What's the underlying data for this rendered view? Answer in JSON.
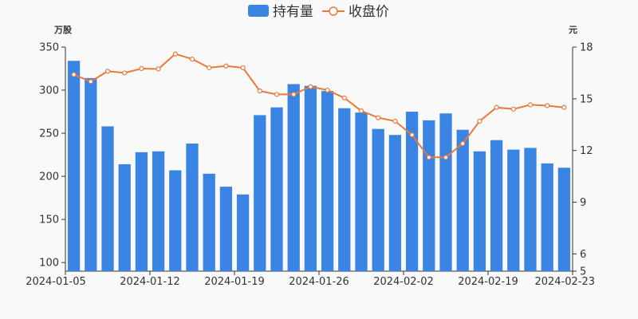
{
  "chart_data": {
    "type": "bar+line",
    "dates": [
      "2024-01-05",
      "2024-01-08",
      "2024-01-09",
      "2024-01-10",
      "2024-01-11",
      "2024-01-12",
      "2024-01-15",
      "2024-01-16",
      "2024-01-17",
      "2024-01-18",
      "2024-01-19",
      "2024-01-22",
      "2024-01-23",
      "2024-01-24",
      "2024-01-25",
      "2024-01-26",
      "2024-01-29",
      "2024-01-30",
      "2024-01-31",
      "2024-02-01",
      "2024-02-02",
      "2024-02-05",
      "2024-02-06",
      "2024-02-07",
      "2024-02-08",
      "2024-02-19",
      "2024-02-20",
      "2024-02-21",
      "2024-02-22",
      "2024-02-23"
    ],
    "x_tick_labels": [
      "2024-01-05",
      "2024-01-12",
      "2024-01-19",
      "2024-01-26",
      "2024-02-02",
      "2024-02-19",
      "2024-02-23"
    ],
    "x_tick_indices": [
      0,
      5,
      10,
      15,
      20,
      25,
      29
    ],
    "series": [
      {
        "name": "持有量",
        "type": "bar",
        "axis": "left",
        "color": "#3a84e3",
        "values": [
          334,
          314,
          258,
          214,
          228,
          229,
          207,
          238,
          203,
          188,
          179,
          271,
          280,
          307,
          305,
          299,
          279,
          274,
          255,
          248,
          275,
          265,
          273,
          254,
          229,
          242,
          231,
          233,
          215,
          210
        ]
      },
      {
        "name": "收盘价",
        "type": "line",
        "axis": "right",
        "color": "#e8793b",
        "values": [
          16.4,
          16.0,
          16.6,
          16.5,
          16.75,
          16.73,
          17.6,
          17.3,
          16.8,
          16.9,
          16.8,
          15.45,
          15.25,
          15.25,
          15.7,
          15.5,
          15.05,
          14.3,
          13.9,
          13.7,
          12.9,
          11.6,
          11.6,
          12.4,
          13.7,
          14.5,
          14.4,
          14.65,
          14.6,
          14.5
        ]
      }
    ],
    "left_axis": {
      "label": "万股",
      "min": 90,
      "max": 350,
      "ticks": [
        100,
        150,
        200,
        250,
        300,
        350
      ]
    },
    "right_axis": {
      "label": "元",
      "min": 5,
      "max": 18,
      "ticks": [
        5,
        6,
        9,
        12,
        15,
        18
      ]
    },
    "legend": {
      "position": "top-center",
      "items": [
        "持有量",
        "收盘价"
      ]
    },
    "grid": false
  }
}
